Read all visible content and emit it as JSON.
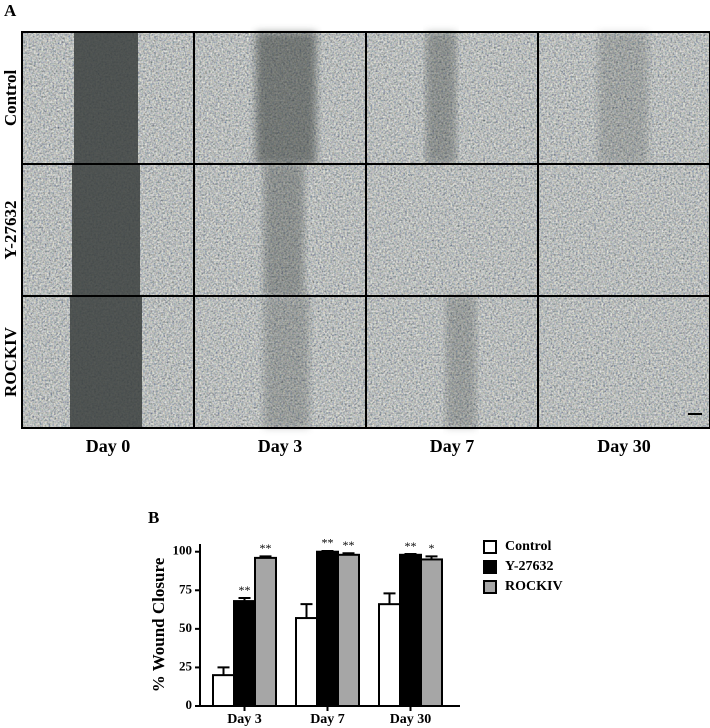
{
  "panel_a": {
    "label": "A",
    "rows": [
      "Control",
      "Y-27632",
      "ROCKIV"
    ],
    "columns": [
      "Day 0",
      "Day 3",
      "Day 7",
      "Day 30"
    ]
  },
  "chart_data": {
    "type": "bar",
    "label": "B",
    "ylabel": "% Wound Closure",
    "categories": [
      "Day 3",
      "Day 7",
      "Day 30"
    ],
    "series": [
      {
        "name": "Control",
        "color": "#ffffff",
        "values": [
          20,
          57,
          66
        ],
        "errors": [
          5,
          9,
          7
        ]
      },
      {
        "name": "Y-27632",
        "color": "#000000",
        "values": [
          68,
          100,
          98
        ],
        "errors": [
          2,
          0.5,
          0.5
        ],
        "significance": [
          "**",
          "**",
          "**"
        ]
      },
      {
        "name": "ROCKIV",
        "color": "#a6a6a6",
        "values": [
          96,
          98,
          95
        ],
        "errors": [
          1,
          1,
          2
        ],
        "significance": [
          "**",
          "**",
          "*"
        ]
      }
    ],
    "ylim": [
      0,
      105
    ],
    "yticks": [
      0,
      25,
      50,
      75,
      100
    ],
    "legend": "upper right"
  }
}
